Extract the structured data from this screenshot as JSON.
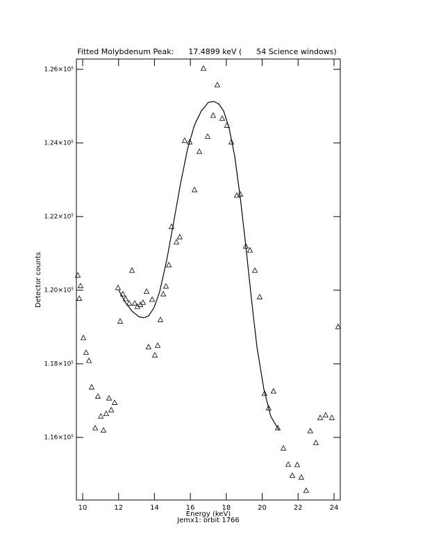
{
  "chart_data": {
    "type": "scatter",
    "title": "Fitted Molybdenum Peak:      17.4899 keV (      54 Science windows)",
    "x_label": "Energy (keV)",
    "y_label": "Detector counts",
    "subtitle": "Jemx1: orbit 1766",
    "xlim": [
      9.65,
      24.35
    ],
    "xticks": [
      10,
      12,
      14,
      16,
      18,
      20,
      22,
      24
    ],
    "ylim": [
      114300,
      126280
    ],
    "yticks": [
      {
        "value": 116000,
        "label": "1.16×10⁵"
      },
      {
        "value": 118000,
        "label": "1.18×10⁵"
      },
      {
        "value": 120000,
        "label": "1.20×10⁵"
      },
      {
        "value": 122000,
        "label": "1.22×10⁵"
      },
      {
        "value": 124000,
        "label": "1.24×10⁵"
      },
      {
        "value": 126000,
        "label": "1.26×10⁵"
      }
    ],
    "color": "#000000",
    "series": [
      {
        "marker": "triangle",
        "x": [
          9.73,
          9.81,
          9.88,
          10.04,
          10.19,
          10.35,
          10.5,
          10.7,
          10.85,
          11.01,
          11.16,
          11.31,
          11.47,
          11.59,
          11.78,
          11.97,
          12.09,
          12.24,
          12.4,
          12.59,
          12.75,
          12.9,
          13.05,
          13.21,
          13.36,
          13.56,
          13.67,
          13.87,
          14.02,
          14.18,
          14.33,
          14.49,
          14.64,
          14.8,
          14.95,
          15.22,
          15.41,
          15.68,
          15.96,
          16.23,
          16.5,
          16.73,
          16.96,
          17.27,
          17.5,
          17.77,
          18.04,
          18.28,
          18.59,
          18.78,
          19.09,
          19.32,
          19.59,
          19.86,
          20.13,
          20.36,
          20.63,
          20.87,
          21.18,
          21.45,
          21.68,
          21.95,
          22.18,
          22.45,
          22.68,
          22.99,
          23.23,
          23.53,
          23.88,
          24.23
        ],
        "values": [
          120400,
          119770,
          120110,
          118700,
          118300,
          118080,
          117360,
          116250,
          117110,
          116570,
          116190,
          116640,
          117060,
          116740,
          116940,
          120060,
          119150,
          119890,
          119760,
          119640,
          120530,
          119640,
          119550,
          119600,
          119660,
          119960,
          118450,
          119740,
          118230,
          118490,
          119190,
          119890,
          120100,
          120680,
          121720,
          121300,
          121440,
          124060,
          124020,
          122720,
          123760,
          126020,
          124170,
          124740,
          125570,
          124660,
          124470,
          124020,
          122570,
          122600,
          121190,
          121080,
          120530,
          119810,
          117190,
          116790,
          117250,
          116250,
          115700,
          115260,
          114960,
          115250,
          114910,
          114550,
          116170,
          115850,
          116530,
          116600,
          116530,
          119000
        ]
      },
      {
        "marker": "line",
        "x": [
          12.01,
          12.36,
          12.75,
          13.13,
          13.4,
          13.67,
          13.98,
          14.29,
          14.68,
          15.07,
          15.45,
          15.84,
          16.23,
          16.61,
          17.0,
          17.31,
          17.58,
          17.85,
          18.16,
          18.47,
          18.78,
          19.09,
          19.4,
          19.71,
          20.09,
          20.48,
          20.94
        ],
        "values": [
          120000,
          119680,
          119430,
          119280,
          119250,
          119300,
          119530,
          119960,
          120810,
          121850,
          122890,
          123830,
          124490,
          124870,
          125100,
          125130,
          125060,
          124870,
          124400,
          123640,
          122510,
          121190,
          119770,
          118450,
          117320,
          116570,
          116190
        ]
      }
    ]
  }
}
